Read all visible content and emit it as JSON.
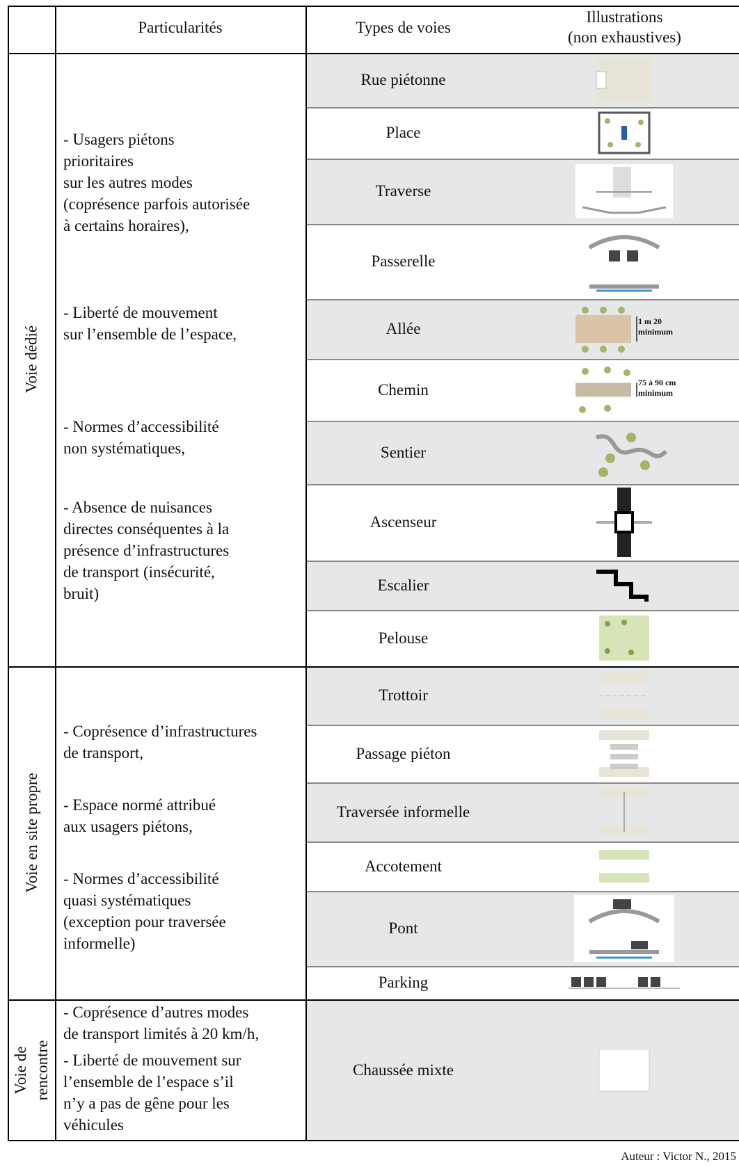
{
  "header": {
    "columns": [
      "Particularités",
      "Types de voies",
      "Illustrations\n(non exhaustives)"
    ]
  },
  "groups": [
    {
      "label": "Voie dédié",
      "particularites": [
        [
          "- Usagers piétons",
          "prioritaires",
          "sur les autres modes",
          "(coprésence parfois autorisée",
          "à certains horaires),"
        ],
        [
          "- Liberté de mouvement",
          "sur l’ensemble de l’espace,"
        ],
        [
          "- Normes d’accessibilité",
          "non systématiques,"
        ],
        [
          "- Absence de nuisances",
          "directes conséquentes à la",
          "présence d’infrastructures",
          "de transport (insécurité,",
          "bruit)"
        ]
      ],
      "rows": [
        {
          "type": "Rue piétonne"
        },
        {
          "type": "Place"
        },
        {
          "type": "Traverse"
        },
        {
          "type": "Passerelle"
        },
        {
          "type": "Allée",
          "note": [
            "1 m 20",
            "minimum"
          ]
        },
        {
          "type": "Chemin",
          "note": [
            "75 à 90 cm",
            "minimum"
          ]
        },
        {
          "type": "Sentier"
        },
        {
          "type": "Ascenseur"
        },
        {
          "type": "Escalier"
        },
        {
          "type": "Pelouse"
        }
      ]
    },
    {
      "label": "Voie en site propre",
      "particularites": [
        [
          "- Coprésence d’infrastructures",
          "de transport,"
        ],
        [
          "- Espace normé attribué",
          "aux usagers piétons,"
        ],
        [
          "- Normes d’accessibilité",
          "quasi systématiques",
          "(exception pour traversée",
          "informelle)"
        ]
      ],
      "rows": [
        {
          "type": "Trottoir"
        },
        {
          "type": "Passage piéton"
        },
        {
          "type": "Traversée informelle"
        },
        {
          "type": "Accotement"
        },
        {
          "type": "Pont"
        },
        {
          "type": "Parking"
        }
      ]
    },
    {
      "label": "Voie de\nrencontre",
      "particularites": [
        [
          "- Coprésence d’autres modes",
          "de transport limités à 20 km/h,"
        ],
        [
          "- Liberté de mouvement sur",
          "l’ensemble de l’espace s’il",
          "n’y a pas de gêne pour les",
          "véhicules"
        ]
      ],
      "rows": [
        {
          "type": "Chaussée mixte"
        }
      ]
    }
  ],
  "footer": "Auteur : Victor N., 2015"
}
